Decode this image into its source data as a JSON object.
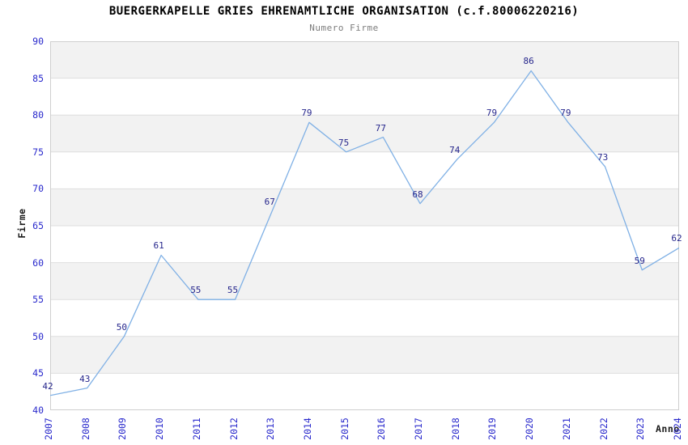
{
  "chart_data": {
    "type": "line",
    "title": "BUERGERKAPELLE GRIES EHRENAMTLICHE ORGANISATION (c.f.80006220216)",
    "subtitle": "Numero Firme",
    "xlabel": "Anno",
    "ylabel": "Firme",
    "categories": [
      "2007",
      "2008",
      "2009",
      "2010",
      "2011",
      "2012",
      "2013",
      "2014",
      "2015",
      "2016",
      "2017",
      "2018",
      "2019",
      "2020",
      "2021",
      "2022",
      "2023",
      "2024"
    ],
    "values": [
      42,
      43,
      50,
      61,
      55,
      55,
      67,
      79,
      75,
      77,
      68,
      74,
      79,
      86,
      79,
      73,
      59,
      62
    ],
    "ylim": [
      40,
      90
    ],
    "yticks": [
      40,
      45,
      50,
      55,
      60,
      65,
      70,
      75,
      80,
      85,
      90
    ],
    "legend": "none",
    "grid": "horizontal-bands",
    "colors": {
      "line": "#7FB0E5",
      "data_label": "#26268C",
      "tick_label": "#2929CC",
      "band_gray": "#F2F2F2",
      "band_white": "#FFFFFF",
      "gridline": "#DEDEDE",
      "plot_border": "#CFCFCF",
      "title": "#000000",
      "subtitle": "#7D7D7D"
    }
  }
}
